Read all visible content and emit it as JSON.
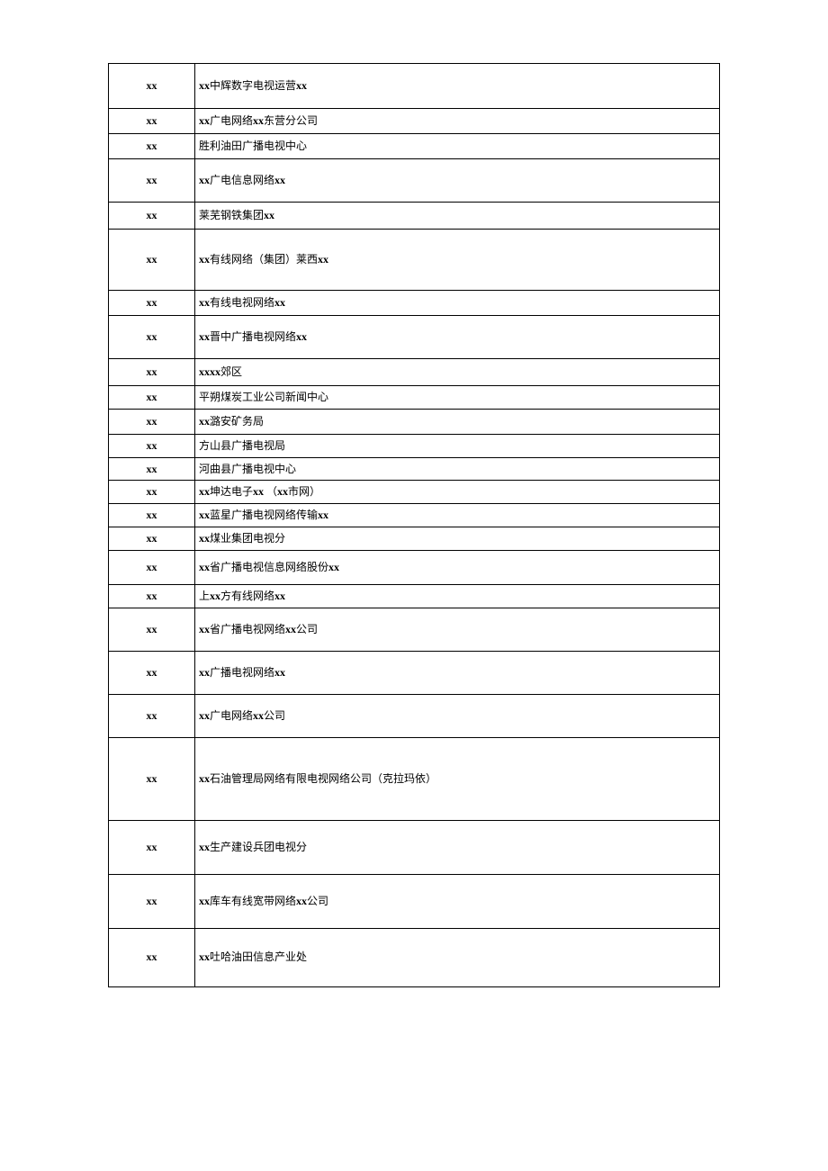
{
  "rows": [
    {
      "col1": "xx",
      "col2": [
        {
          "t": "xx",
          "b": true
        },
        {
          "t": "中辉数字电视运营",
          "b": false
        },
        {
          "t": "xx",
          "b": true
        }
      ],
      "h": "h-50"
    },
    {
      "col1": "xx",
      "col2": [
        {
          "t": "xx",
          "b": true
        },
        {
          "t": "广电网络",
          "b": false
        },
        {
          "t": "xx",
          "b": true
        },
        {
          "t": "东营分公司",
          "b": false
        }
      ],
      "h": "h-28"
    },
    {
      "col1": "xx",
      "col2": [
        {
          "t": "胜利油田广播电视中心",
          "b": false
        }
      ],
      "h": "h-28"
    },
    {
      "col1": "xx",
      "col2": [
        {
          "t": "xx",
          "b": true
        },
        {
          "t": "广电信息网络",
          "b": false
        },
        {
          "t": "xx",
          "b": true
        }
      ],
      "h": "h-48"
    },
    {
      "col1": "xx",
      "col2": [
        {
          "t": "莱芜钢铁集团",
          "b": false
        },
        {
          "t": "xx",
          "b": true
        }
      ],
      "h": "h-30"
    },
    {
      "col1": "xx",
      "col2": [
        {
          "t": "xx",
          "b": true
        },
        {
          "t": "有线网络（集团）莱西",
          "b": false
        },
        {
          "t": "xx",
          "b": true
        }
      ],
      "h": "h-68"
    },
    {
      "col1": "xx",
      "col2": [
        {
          "t": "xx",
          "b": true
        },
        {
          "t": "有线电视网络",
          "b": false
        },
        {
          "t": "xx",
          "b": true
        }
      ],
      "h": "h-28"
    },
    {
      "col1": "xx",
      "col2": [
        {
          "t": "xx",
          "b": true
        },
        {
          "t": "晋中广播电视网络",
          "b": false
        },
        {
          "t": "xx",
          "b": true
        }
      ],
      "h": "h-48"
    },
    {
      "col1": "xx",
      "col2": [
        {
          "t": "xxxx",
          "b": true
        },
        {
          "t": "郊区",
          "b": false
        }
      ],
      "h": "h-30"
    },
    {
      "col1": "xx",
      "col2": [
        {
          "t": "平朔煤炭工业公司新闻中心",
          "b": false
        }
      ],
      "h": "h-22"
    },
    {
      "col1": "xx",
      "col2": [
        {
          "t": "xx",
          "b": true
        },
        {
          "t": "潞安矿务局",
          "b": false
        }
      ],
      "h": "h-28"
    },
    {
      "col1": "xx",
      "col2": [
        {
          "t": "方山县广播电视局",
          "b": false
        }
      ],
      "h": "h-24"
    },
    {
      "col1": "xx",
      "col2": [
        {
          "t": "河曲县广播电视中心",
          "b": false
        }
      ],
      "h": "h-22"
    },
    {
      "col1": "xx",
      "col2": [
        {
          "t": "xx",
          "b": true
        },
        {
          "t": "坤达电子",
          "b": false
        },
        {
          "t": "xx",
          "b": true
        },
        {
          "t": " （",
          "b": false
        },
        {
          "t": "xx",
          "b": true
        },
        {
          "t": "市网）",
          "b": false
        }
      ],
      "h": "h-22"
    },
    {
      "col1": "xx",
      "col2": [
        {
          "t": "xx",
          "b": true
        },
        {
          "t": "蓝星广播电视网络传输",
          "b": false
        },
        {
          "t": "xx",
          "b": true
        }
      ],
      "h": "h-22"
    },
    {
      "col1": "xx",
      "col2": [
        {
          "t": "xx",
          "b": true
        },
        {
          "t": "煤业集团电视分",
          "b": false
        }
      ],
      "h": "h-24"
    },
    {
      "col1": "xx",
      "col2": [
        {
          "t": "xx",
          "b": true
        },
        {
          "t": "省广播电视信息网络股份",
          "b": false
        },
        {
          "t": "xx",
          "b": true
        }
      ],
      "h": "h-38"
    },
    {
      "col1": "xx",
      "col2": [
        {
          "t": "上",
          "b": false
        },
        {
          "t": "xx",
          "b": true
        },
        {
          "t": "方有线网络",
          "b": false
        },
        {
          "t": "xx",
          "b": true
        }
      ],
      "h": "h-22"
    },
    {
      "col1": "xx",
      "col2": [
        {
          "t": "xx",
          "b": true
        },
        {
          "t": "省广播电视网络",
          "b": false
        },
        {
          "t": "xx",
          "b": true
        },
        {
          "t": "公司",
          "b": false
        }
      ],
      "h": "h-48"
    },
    {
      "col1": "xx",
      "col2": [
        {
          "t": "xx",
          "b": true
        },
        {
          "t": "广播电视网络",
          "b": false
        },
        {
          "t": "xx",
          "b": true
        }
      ],
      "h": "h-48"
    },
    {
      "col1": "xx",
      "col2": [
        {
          "t": "xx",
          "b": true
        },
        {
          "t": "广电网络",
          "b": false
        },
        {
          "t": "xx",
          "b": true
        },
        {
          "t": "公司",
          "b": false
        }
      ],
      "h": "h-48"
    },
    {
      "col1": "xx",
      "col2": [
        {
          "t": "xx",
          "b": true
        },
        {
          "t": "石油管理局网络有限电视网络公司（克拉玛依）",
          "b": false
        }
      ],
      "h": "h-92"
    },
    {
      "col1": "xx",
      "col2": [
        {
          "t": "xx",
          "b": true
        },
        {
          "t": "生产建设兵团电视分",
          "b": false
        }
      ],
      "h": "h-60"
    },
    {
      "col1": "xx",
      "col2": [
        {
          "t": "xx",
          "b": true
        },
        {
          "t": "库车有线宽带网络",
          "b": false
        },
        {
          "t": "xx",
          "b": true
        },
        {
          "t": "公司",
          "b": false
        }
      ],
      "h": "h-60"
    },
    {
      "col1": "xx",
      "col2": [
        {
          "t": "xx",
          "b": true
        },
        {
          "t": "吐哈油田信息产业处",
          "b": false
        }
      ],
      "h": "h-65"
    }
  ]
}
